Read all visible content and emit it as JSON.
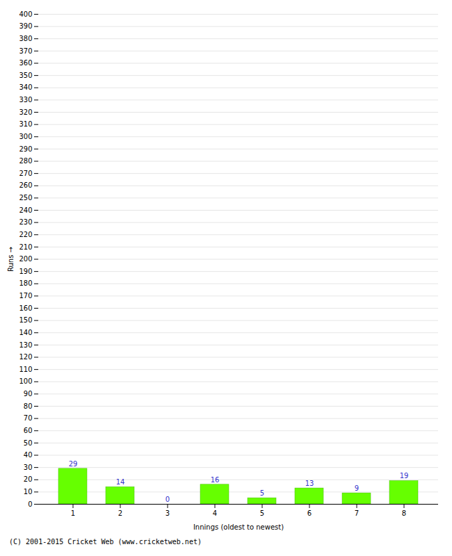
{
  "chart_data": {
    "type": "bar",
    "categories": [
      "1",
      "2",
      "3",
      "4",
      "5",
      "6",
      "7",
      "8"
    ],
    "values": [
      29,
      14,
      0,
      16,
      5,
      13,
      9,
      19
    ],
    "color": "#66ff00",
    "xlabel": "Innings (oldest to newest)",
    "ylabel": "Runs",
    "ylim": [
      0,
      400
    ],
    "yticks": [
      0,
      10,
      20,
      30,
      40,
      50,
      60,
      70,
      80,
      90,
      100,
      110,
      120,
      130,
      140,
      150,
      160,
      170,
      180,
      190,
      200,
      210,
      220,
      230,
      240,
      250,
      260,
      270,
      280,
      290,
      300,
      310,
      320,
      330,
      340,
      350,
      360,
      370,
      380,
      390,
      400
    ],
    "grid": true,
    "data_labels": true,
    "annotations": [
      "(C) 2001-2015 Cricket Web (www.cricketweb.net)"
    ]
  }
}
